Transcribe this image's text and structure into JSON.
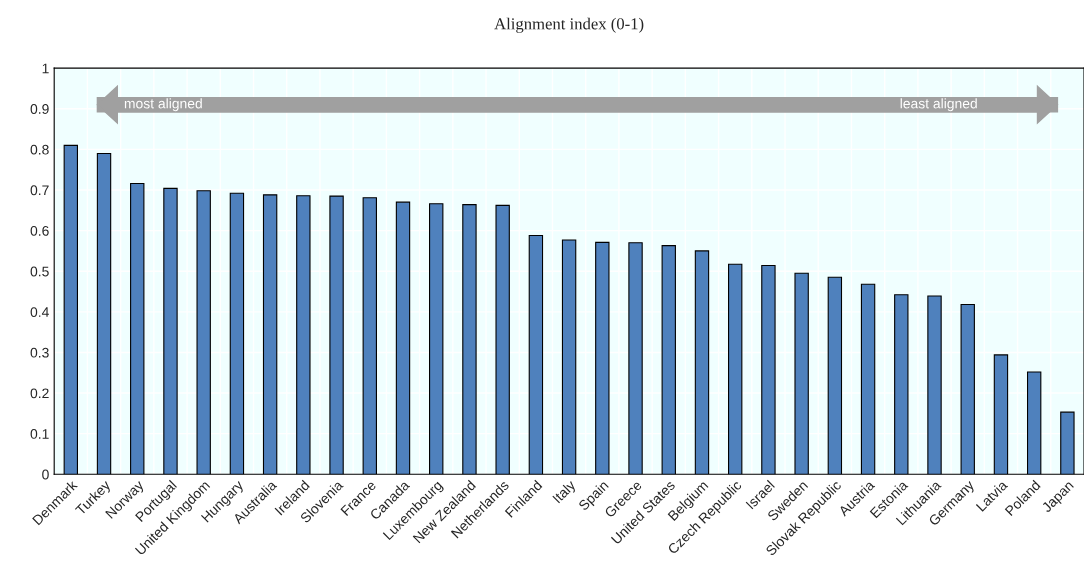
{
  "chart_data": {
    "type": "bar",
    "title": "Alignment index (0-1)",
    "categories": [
      "Denmark",
      "Turkey",
      "Norway",
      "Portugal",
      "United Kingdom",
      "Hungary",
      "Australia",
      "Ireland",
      "Slovenia",
      "France",
      "Canada",
      "Luxembourg",
      "New Zealand",
      "Netherlands",
      "Finland",
      "Italy",
      "Spain",
      "Greece",
      "United States",
      "Belgium",
      "Czech Republic",
      "Israel",
      "Sweden",
      "Slovak Republic",
      "Austria",
      "Estonia",
      "Lithuania",
      "Germany",
      "Latvia",
      "Poland",
      "Japan"
    ],
    "values": [
      0.81,
      0.79,
      0.716,
      0.704,
      0.698,
      0.692,
      0.688,
      0.686,
      0.685,
      0.681,
      0.67,
      0.666,
      0.664,
      0.662,
      0.588,
      0.577,
      0.571,
      0.57,
      0.563,
      0.55,
      0.517,
      0.514,
      0.495,
      0.485,
      0.468,
      0.442,
      0.439,
      0.418,
      0.294,
      0.252,
      0.153
    ],
    "color": "#4f81bd",
    "ylim": [
      0,
      1
    ],
    "yticks": [
      0,
      0.1,
      0.2,
      0.3,
      0.4,
      0.5,
      0.6,
      0.7,
      0.8,
      0.9,
      1
    ],
    "grid": true,
    "annotations": [
      "most aligned",
      "least aligned"
    ]
  }
}
